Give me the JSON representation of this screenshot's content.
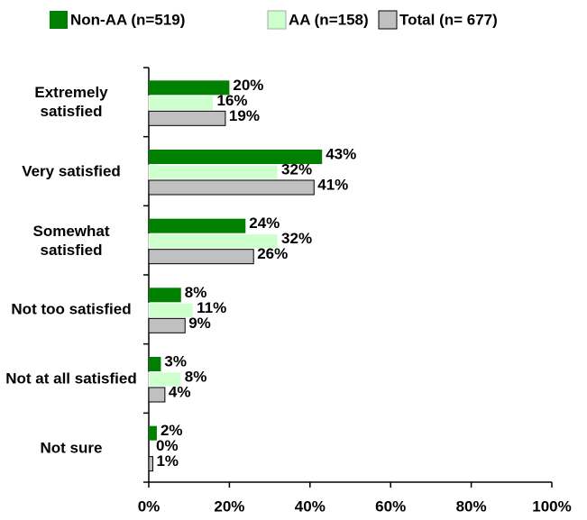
{
  "chart_data": {
    "type": "bar",
    "orientation": "horizontal",
    "categories": [
      "Extremely satisfied",
      "Very satisfied",
      "Somewhat satisfied",
      "Not too satisfied",
      "Not at all satisfied",
      "Not sure"
    ],
    "series": [
      {
        "name": "Non-AA (n=519)",
        "color": "#008000",
        "values": [
          20,
          43,
          24,
          8,
          3,
          2
        ],
        "value_labels": [
          "20%",
          "43%",
          "24%",
          "8%",
          "3%",
          "2%"
        ]
      },
      {
        "name": "AA (n=158)",
        "color": "#ccffcc",
        "values": [
          16,
          32,
          32,
          11,
          8,
          0
        ],
        "value_labels": [
          "16%",
          "32%",
          "32%",
          "11%",
          "8%",
          "0%"
        ]
      },
      {
        "name": "Total (n= 677)",
        "color": "#c0c0c0",
        "values": [
          19,
          41,
          26,
          9,
          4,
          1
        ],
        "value_labels": [
          "19%",
          "41%",
          "26%",
          "9%",
          "4%",
          "1%"
        ]
      }
    ],
    "xlim": [
      0,
      100
    ],
    "xticks": [
      {
        "value": 0,
        "label": "0%"
      },
      {
        "value": 20,
        "label": "20%"
      },
      {
        "value": 40,
        "label": "40%"
      },
      {
        "value": 60,
        "label": "60%"
      },
      {
        "value": 80,
        "label": "80%"
      },
      {
        "value": 100,
        "label": "100%"
      }
    ],
    "legend": "top"
  }
}
